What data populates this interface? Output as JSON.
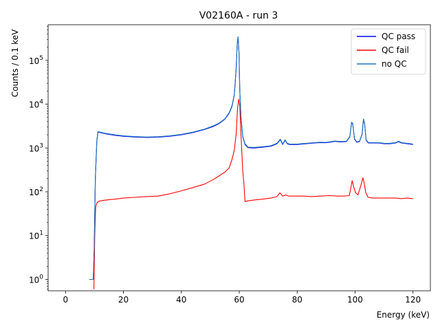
{
  "chart_data": {
    "type": "line",
    "title": "V02160A - run 3",
    "xlabel": "Energy (keV)",
    "ylabel": "Counts / 0.1 keV",
    "xlim": [
      -6,
      126
    ],
    "ylim": [
      0.55,
      650000
    ],
    "yscale": "log",
    "x_ticks": [
      0,
      20,
      40,
      60,
      80,
      100,
      120
    ],
    "x_tick_labels": [
      "0",
      "20",
      "40",
      "60",
      "80",
      "100",
      "120"
    ],
    "y_ticks": [
      1,
      10,
      100,
      1000,
      10000,
      100000
    ],
    "y_tick_labels": [
      "10^0",
      "10^1",
      "10^2",
      "10^3",
      "10^4",
      "10^5"
    ],
    "legend_position": "top-right",
    "grid": false,
    "series": [
      {
        "name": "QC pass",
        "color": "#0000ff",
        "x": [
          8.2,
          9.6,
          9.9,
          10.3,
          10.8,
          11.2,
          12,
          14,
          17,
          20,
          24,
          28,
          32,
          36,
          40,
          44,
          48,
          51,
          53,
          55,
          56.5,
          57.5,
          58.3,
          58.9,
          59.3,
          59.6,
          59.9,
          60.2,
          60.6,
          61.2,
          62.0,
          63,
          65,
          68,
          71,
          73,
          74.2,
          75,
          75.8,
          76.6,
          77.4,
          78.5,
          80,
          83,
          86,
          88,
          90,
          92,
          93,
          95,
          97,
          98.2,
          98.8,
          99.2,
          99.8,
          100.6,
          101.5,
          102.4,
          102.9,
          103.3,
          103.8,
          104.6,
          106,
          108,
          110,
          112,
          114,
          115,
          116,
          118,
          120
        ],
        "y": [
          1,
          1,
          5,
          200,
          1400,
          2300,
          2250,
          2100,
          1950,
          1850,
          1780,
          1740,
          1770,
          1850,
          2000,
          2250,
          2650,
          3100,
          3600,
          4500,
          6200,
          9000,
          16000,
          60000,
          250000,
          340000,
          150000,
          20000,
          5000,
          1800,
          1200,
          1020,
          1000,
          1040,
          1100,
          1250,
          1550,
          1200,
          1500,
          1250,
          1200,
          1200,
          1200,
          1250,
          1300,
          1330,
          1320,
          1380,
          1420,
          1380,
          1400,
          1800,
          3800,
          3500,
          1600,
          1350,
          1400,
          2000,
          4500,
          3500,
          1500,
          1300,
          1300,
          1300,
          1250,
          1250,
          1300,
          1400,
          1300,
          1250,
          1200
        ]
      },
      {
        "name": "QC fail",
        "color": "#ff0000",
        "x": [
          9.8,
          10.1,
          10.4,
          10.8,
          11.3,
          12,
          14,
          17,
          20,
          24,
          28,
          32,
          36,
          40,
          44,
          48,
          51,
          53,
          55,
          56.5,
          57.5,
          58.3,
          58.9,
          59.4,
          59.8,
          60.2,
          60.6,
          61.2,
          61.6,
          62,
          63,
          65,
          68,
          71,
          73,
          74,
          75,
          76,
          77,
          79,
          82,
          85,
          88,
          91,
          94,
          96,
          98,
          98.6,
          99.0,
          99.5,
          100.2,
          101,
          102,
          102.7,
          103.2,
          103.7,
          104.5,
          106,
          108,
          110,
          112,
          114,
          116,
          118,
          120
        ],
        "y": [
          0.6,
          10,
          45,
          55,
          60,
          62,
          65,
          68,
          72,
          75,
          78,
          80,
          90,
          105,
          125,
          150,
          190,
          230,
          280,
          350,
          550,
          900,
          2000,
          8000,
          13000,
          9000,
          2000,
          300,
          160,
          60,
          62,
          65,
          68,
          72,
          78,
          95,
          80,
          85,
          80,
          80,
          80,
          78,
          80,
          82,
          80,
          80,
          82,
          130,
          180,
          130,
          95,
          85,
          140,
          210,
          150,
          95,
          75,
          72,
          72,
          72,
          72,
          72,
          70,
          72,
          70
        ]
      },
      {
        "name": "no QC",
        "color": "#1f77b4",
        "x": [
          8.2,
          9.6,
          9.9,
          10.3,
          10.8,
          11.2,
          12,
          14,
          17,
          20,
          24,
          28,
          32,
          36,
          40,
          44,
          48,
          51,
          53,
          55,
          56.5,
          57.5,
          58.3,
          58.9,
          59.3,
          59.6,
          59.9,
          60.2,
          60.6,
          61.2,
          62.0,
          63,
          65,
          68,
          71,
          73,
          74.2,
          75,
          75.8,
          76.6,
          77.4,
          78.5,
          80,
          83,
          86,
          88,
          90,
          92,
          93,
          95,
          97,
          98.2,
          98.8,
          99.2,
          99.8,
          100.6,
          101.5,
          102.4,
          102.9,
          103.3,
          103.8,
          104.6,
          106,
          108,
          110,
          112,
          114,
          115,
          116,
          118,
          120
        ],
        "y": [
          1,
          1,
          5,
          210,
          1450,
          2350,
          2300,
          2150,
          2000,
          1900,
          1820,
          1780,
          1810,
          1890,
          2050,
          2300,
          2700,
          3200,
          3700,
          4600,
          6400,
          9300,
          16500,
          62000,
          255000,
          345000,
          155000,
          21000,
          5200,
          1850,
          1250,
          1050,
          1030,
          1070,
          1130,
          1280,
          1600,
          1230,
          1540,
          1280,
          1230,
          1230,
          1230,
          1280,
          1330,
          1360,
          1350,
          1410,
          1450,
          1410,
          1430,
          1840,
          3900,
          3600,
          1640,
          1380,
          1430,
          2050,
          4600,
          3600,
          1540,
          1330,
          1330,
          1330,
          1280,
          1280,
          1330,
          1430,
          1330,
          1280,
          1230
        ]
      }
    ]
  }
}
